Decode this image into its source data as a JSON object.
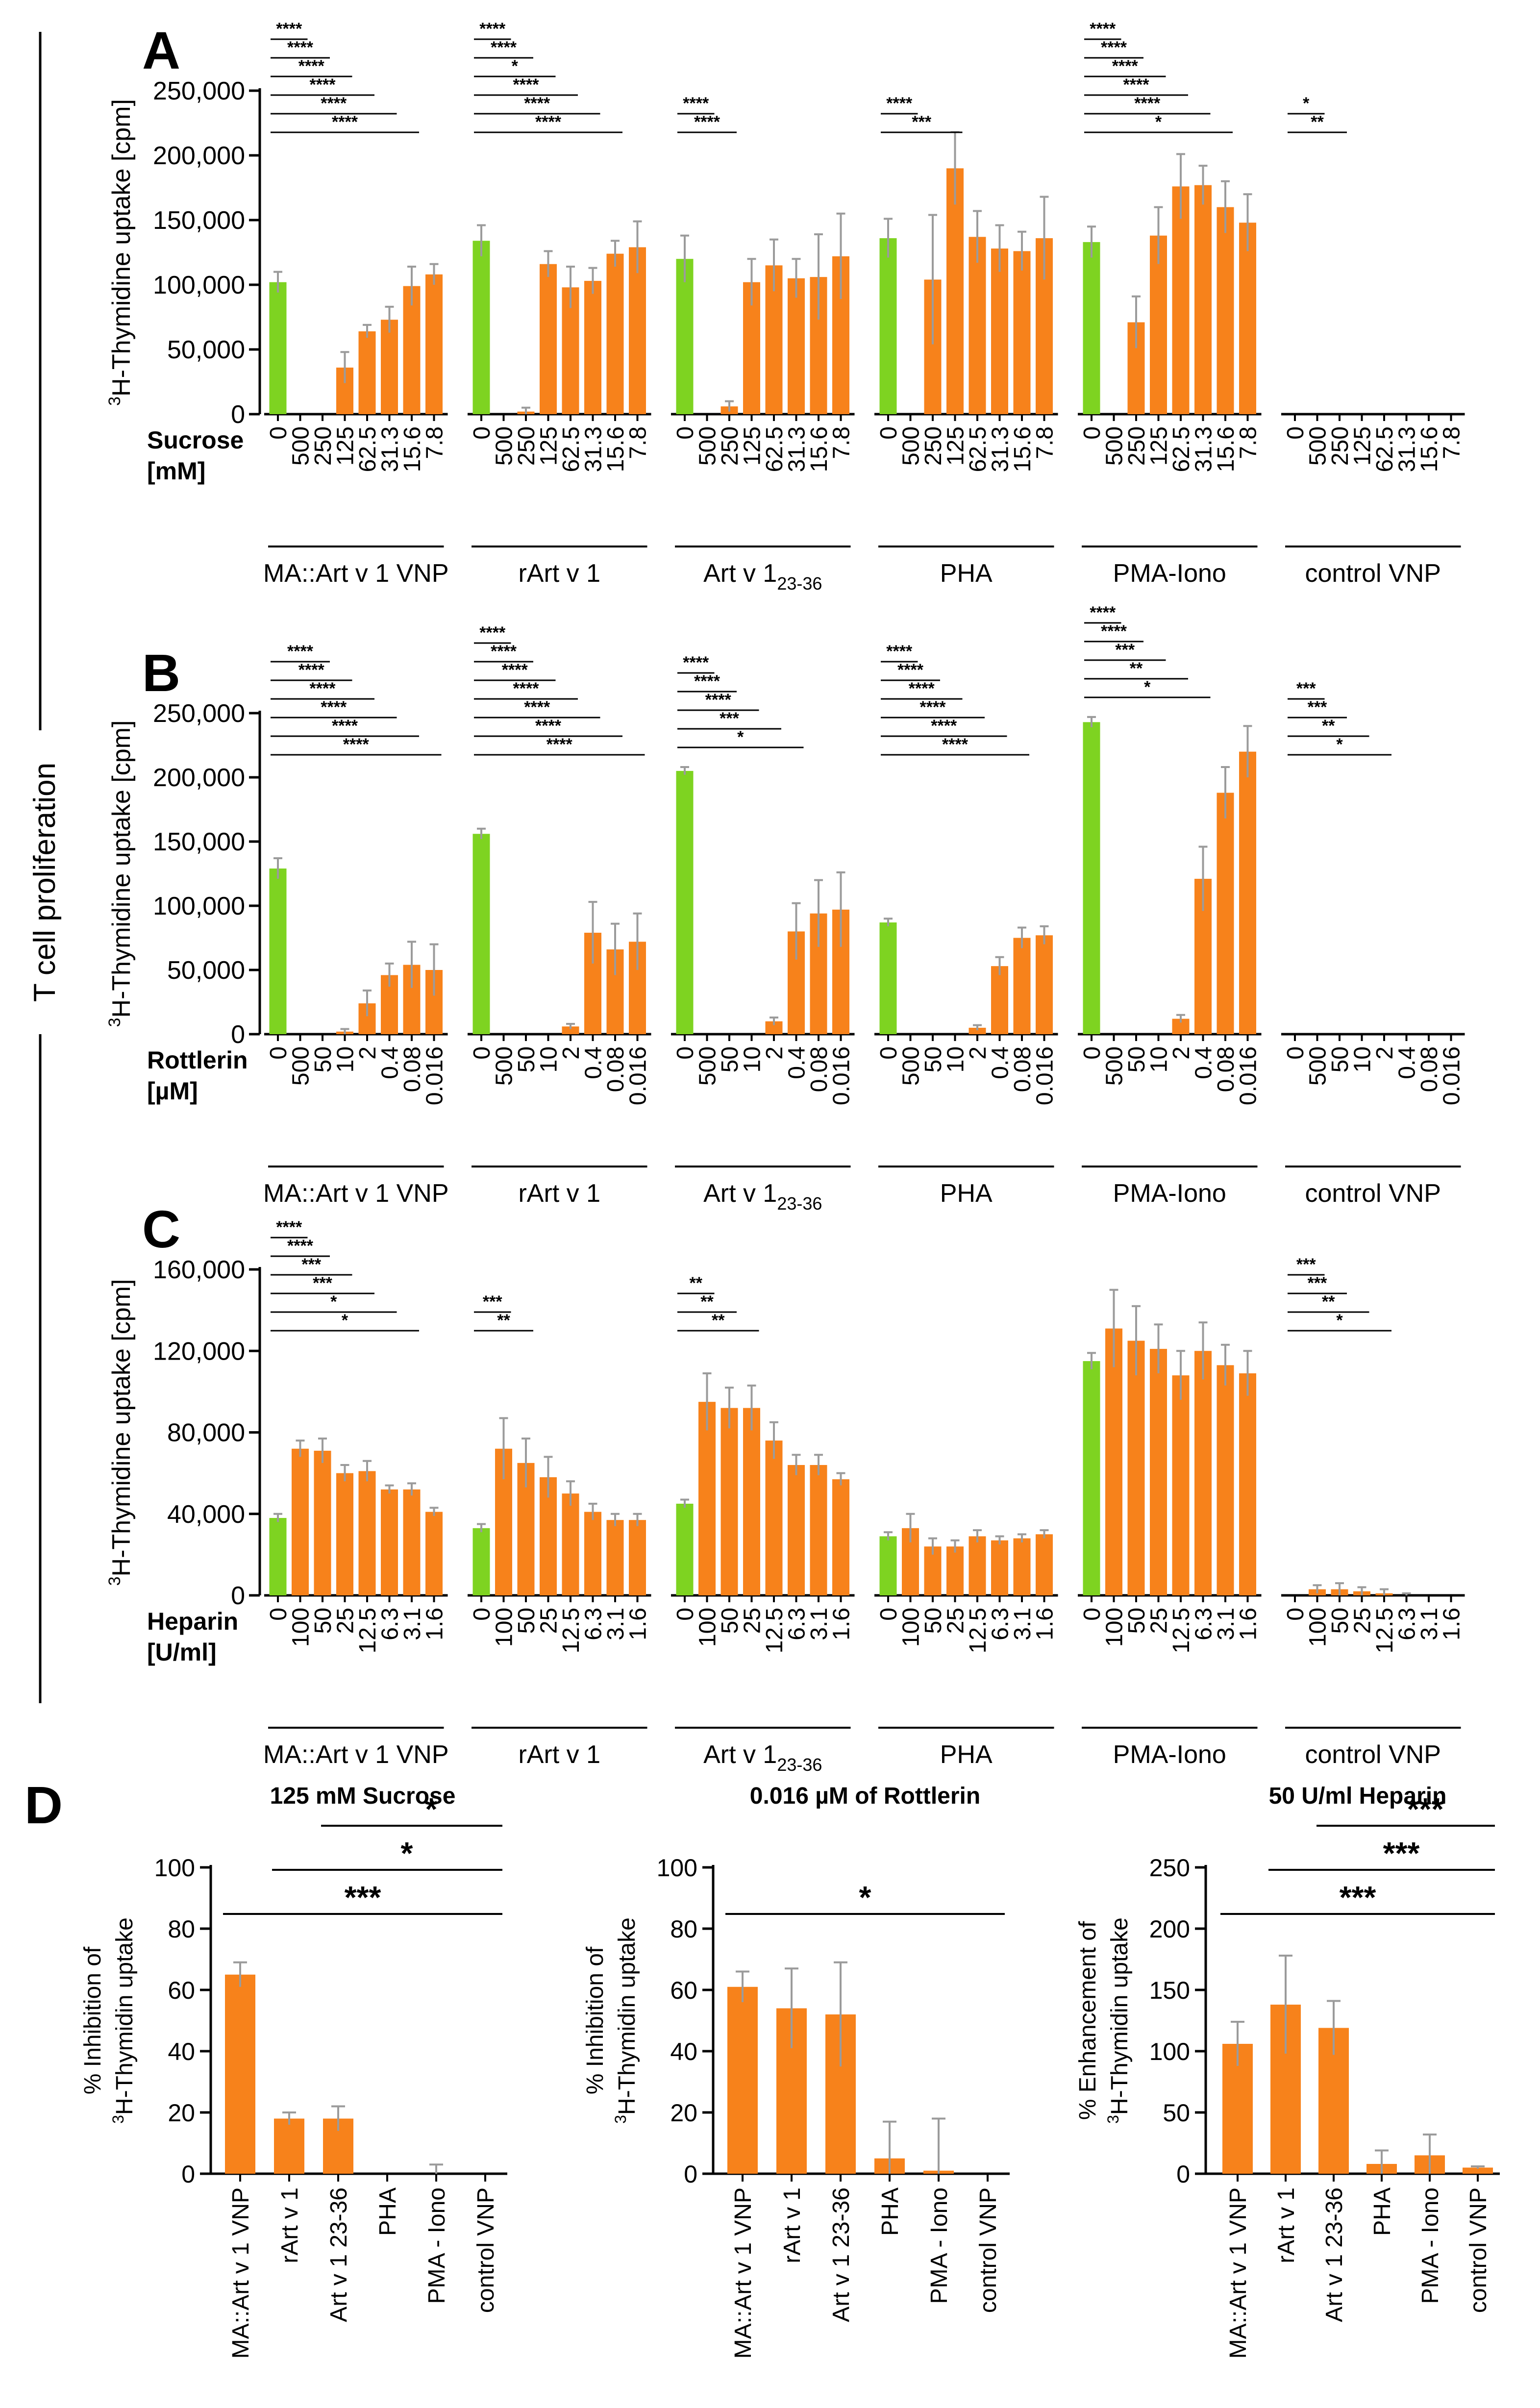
{
  "figure": {
    "side_label": "T cell proliferation",
    "colors": {
      "control": "#7ed321",
      "treated": "#f7821b",
      "error": "#9b9b9b",
      "axis": "#000000"
    }
  },
  "chart_data": [
    {
      "id": "A",
      "type": "bar",
      "panel_letter": "A",
      "ylabel": "3H-Thymidine uptake [cpm]",
      "ylabel_sup": "3",
      "ylabel_main": "H-Thymidine uptake [cpm]",
      "ylim": [
        0,
        250000
      ],
      "yticks": [
        0,
        50000,
        100000,
        150000,
        200000,
        250000
      ],
      "ytick_labels": [
        "0",
        "50,000",
        "100,000",
        "150,000",
        "200,000",
        "250,000"
      ],
      "treatment_label": [
        "Sucrose",
        "[mM]"
      ],
      "categories": [
        "0",
        "500",
        "250",
        "125",
        "62.5",
        "31.3",
        "15.6",
        "7.8"
      ],
      "groups": [
        {
          "name": "MA::Art v 1 VNP",
          "values": [
            102000,
            0,
            0,
            36000,
            64000,
            73000,
            99000,
            108000
          ],
          "errors": [
            8000,
            0,
            0,
            12000,
            5000,
            10000,
            15000,
            8000
          ],
          "significance": [
            {
              "to": 1,
              "label": "****"
            },
            {
              "to": 2,
              "label": "****"
            },
            {
              "to": 3,
              "label": "****"
            },
            {
              "to": 4,
              "label": "****"
            },
            {
              "to": 5,
              "label": "****"
            },
            {
              "to": 6,
              "label": "****"
            }
          ]
        },
        {
          "name": "rArt v 1",
          "values": [
            134000,
            0,
            2000,
            116000,
            98000,
            103000,
            124000,
            129000
          ],
          "errors": [
            12000,
            0,
            3000,
            10000,
            16000,
            10000,
            10000,
            20000
          ],
          "significance": [
            {
              "to": 1,
              "label": "****"
            },
            {
              "to": 2,
              "label": "****"
            },
            {
              "to": 3,
              "label": "*"
            },
            {
              "to": 4,
              "label": "****"
            },
            {
              "to": 5,
              "label": "****"
            },
            {
              "to": 6,
              "label": "****"
            }
          ]
        },
        {
          "name": "Art v 1",
          "name_sub": "23-36",
          "values": [
            120000,
            0,
            6000,
            102000,
            115000,
            105000,
            106000,
            122000
          ],
          "errors": [
            18000,
            0,
            4000,
            18000,
            20000,
            15000,
            33000,
            33000
          ],
          "significance": [
            {
              "to": 1,
              "label": "****"
            },
            {
              "to": 2,
              "label": "****"
            }
          ]
        },
        {
          "name": "PHA",
          "values": [
            136000,
            0,
            104000,
            190000,
            137000,
            128000,
            126000,
            136000
          ],
          "errors": [
            15000,
            0,
            50000,
            28000,
            20000,
            18000,
            15000,
            32000
          ],
          "significance": [
            {
              "to": 1,
              "label": "****"
            },
            {
              "to": 3,
              "label": "***"
            }
          ]
        },
        {
          "name": "PMA-Iono",
          "values": [
            133000,
            0,
            71000,
            138000,
            176000,
            177000,
            160000,
            148000
          ],
          "errors": [
            12000,
            0,
            20000,
            22000,
            25000,
            15000,
            20000,
            22000
          ],
          "significance": [
            {
              "to": 1,
              "label": "****"
            },
            {
              "to": 2,
              "label": "****"
            },
            {
              "to": 3,
              "label": "****"
            },
            {
              "to": 4,
              "label": "****"
            },
            {
              "to": 5,
              "label": "****"
            },
            {
              "to": 6,
              "label": "*"
            }
          ]
        },
        {
          "name": "control VNP",
          "values": [
            0,
            0,
            0,
            0,
            0,
            0,
            0,
            0
          ],
          "errors": [
            0,
            0,
            0,
            0,
            0,
            0,
            0,
            0
          ],
          "significance": [
            {
              "to": 1,
              "label": "*"
            },
            {
              "to": 2,
              "label": "**"
            }
          ]
        }
      ]
    },
    {
      "id": "B",
      "type": "bar",
      "panel_letter": "B",
      "ylabel": "3H-Thymidine uptake [cpm]",
      "ylabel_sup": "3",
      "ylabel_main": "H-Thymidine uptake [cpm]",
      "ylim": [
        0,
        250000
      ],
      "yticks": [
        0,
        50000,
        100000,
        150000,
        200000,
        250000
      ],
      "ytick_labels": [
        "0",
        "50,000",
        "100,000",
        "150,000",
        "200,000",
        "250,000"
      ],
      "treatment_label": [
        "Rottlerin",
        "[µM]"
      ],
      "categories": [
        "0",
        "500",
        "50",
        "10",
        "2",
        "0.4",
        "0.08",
        "0.016"
      ],
      "groups": [
        {
          "name": "MA::Art v 1 VNP",
          "values": [
            129000,
            0,
            0,
            2000,
            24000,
            46000,
            54000,
            50000
          ],
          "errors": [
            8000,
            0,
            0,
            2000,
            10000,
            9000,
            18000,
            20000
          ],
          "significance": [
            {
              "to": 2,
              "label": "****"
            },
            {
              "to": 3,
              "label": "****"
            },
            {
              "to": 4,
              "label": "****"
            },
            {
              "to": 5,
              "label": "****"
            },
            {
              "to": 6,
              "label": "****"
            },
            {
              "to": 7,
              "label": "****"
            }
          ]
        },
        {
          "name": "rArt v 1",
          "values": [
            156000,
            0,
            0,
            0,
            6000,
            79000,
            66000,
            72000
          ],
          "errors": [
            4000,
            0,
            0,
            0,
            2000,
            24000,
            20000,
            22000
          ],
          "significance": [
            {
              "to": 1,
              "label": "****"
            },
            {
              "to": 2,
              "label": "****"
            },
            {
              "to": 3,
              "label": "****"
            },
            {
              "to": 4,
              "label": "****"
            },
            {
              "to": 5,
              "label": "****"
            },
            {
              "to": 6,
              "label": "****"
            },
            {
              "to": 7,
              "label": "****"
            }
          ]
        },
        {
          "name": "Art v 1",
          "name_sub": "23-36",
          "values": [
            205000,
            0,
            0,
            0,
            10000,
            80000,
            94000,
            97000
          ],
          "errors": [
            3000,
            0,
            0,
            0,
            3000,
            22000,
            26000,
            29000
          ],
          "significance": [
            {
              "to": 1,
              "label": "****"
            },
            {
              "to": 2,
              "label": "****"
            },
            {
              "to": 3,
              "label": "****"
            },
            {
              "to": 4,
              "label": "***"
            },
            {
              "to": 5,
              "label": "*"
            }
          ]
        },
        {
          "name": "PHA",
          "values": [
            87000,
            0,
            0,
            0,
            5000,
            53000,
            75000,
            77000
          ],
          "errors": [
            3000,
            0,
            0,
            0,
            2000,
            7000,
            8000,
            7000
          ],
          "significance": [
            {
              "to": 1,
              "label": "****"
            },
            {
              "to": 2,
              "label": "****"
            },
            {
              "to": 3,
              "label": "****"
            },
            {
              "to": 4,
              "label": "****"
            },
            {
              "to": 5,
              "label": "****"
            },
            {
              "to": 6,
              "label": "****"
            }
          ]
        },
        {
          "name": "PMA-Iono",
          "values": [
            243000,
            0,
            0,
            0,
            12000,
            121000,
            188000,
            220000
          ],
          "errors": [
            4000,
            0,
            0,
            0,
            3000,
            25000,
            20000,
            20000
          ],
          "significance": [
            {
              "to": 1,
              "label": "****"
            },
            {
              "to": 2,
              "label": "****"
            },
            {
              "to": 3,
              "label": "***"
            },
            {
              "to": 4,
              "label": "**"
            },
            {
              "to": 5,
              "label": "*"
            }
          ]
        },
        {
          "name": "control VNP",
          "values": [
            0,
            0,
            0,
            0,
            0,
            0,
            0,
            0
          ],
          "errors": [
            0,
            0,
            0,
            0,
            0,
            0,
            0,
            0
          ],
          "significance": [
            {
              "to": 1,
              "label": "***"
            },
            {
              "to": 2,
              "label": "***"
            },
            {
              "to": 3,
              "label": "**"
            },
            {
              "to": 4,
              "label": "*"
            }
          ]
        }
      ]
    },
    {
      "id": "C",
      "type": "bar",
      "panel_letter": "C",
      "ylabel": "3H-Thymidine uptake [cpm]",
      "ylabel_sup": "3",
      "ylabel_main": "H-Thymidine uptake [cpm]",
      "ylim": [
        0,
        160000
      ],
      "yticks": [
        0,
        40000,
        80000,
        120000,
        160000
      ],
      "ytick_labels": [
        "0",
        "40,000",
        "80,000",
        "120,000",
        "160,000"
      ],
      "treatment_label": [
        "Heparin",
        "[U/ml]"
      ],
      "categories": [
        "0",
        "100",
        "50",
        "25",
        "12.5",
        "6.3",
        "3.1",
        "1.6"
      ],
      "groups": [
        {
          "name": "MA::Art v 1 VNP",
          "values": [
            38000,
            72000,
            71000,
            60000,
            61000,
            52000,
            52000,
            41000
          ],
          "errors": [
            2000,
            4000,
            6000,
            4000,
            5000,
            2000,
            3000,
            2000
          ],
          "significance": [
            {
              "to": 1,
              "label": "****"
            },
            {
              "to": 2,
              "label": "****"
            },
            {
              "to": 3,
              "label": "***"
            },
            {
              "to": 4,
              "label": "***"
            },
            {
              "to": 5,
              "label": "*"
            },
            {
              "to": 6,
              "label": "*"
            }
          ]
        },
        {
          "name": "rArt v 1",
          "values": [
            33000,
            72000,
            65000,
            58000,
            50000,
            41000,
            37000,
            37000
          ],
          "errors": [
            2000,
            15000,
            12000,
            10000,
            6000,
            4000,
            3000,
            3000
          ],
          "significance": [
            {
              "to": 1,
              "label": "***"
            },
            {
              "to": 2,
              "label": "**"
            }
          ]
        },
        {
          "name": "Art v 1",
          "name_sub": "23-36",
          "values": [
            45000,
            95000,
            92000,
            92000,
            76000,
            64000,
            64000,
            57000
          ],
          "errors": [
            2000,
            14000,
            10000,
            11000,
            9000,
            5000,
            5000,
            3000
          ],
          "significance": [
            {
              "to": 1,
              "label": "**"
            },
            {
              "to": 2,
              "label": "**"
            },
            {
              "to": 3,
              "label": "**"
            }
          ]
        },
        {
          "name": "PHA",
          "values": [
            29000,
            33000,
            24000,
            24000,
            29000,
            27000,
            28000,
            30000
          ],
          "errors": [
            2000,
            7000,
            4000,
            3000,
            3000,
            2000,
            2000,
            2000
          ],
          "significance": []
        },
        {
          "name": "PMA-Iono",
          "values": [
            115000,
            131000,
            125000,
            121000,
            108000,
            120000,
            113000,
            109000
          ],
          "errors": [
            4000,
            19000,
            17000,
            12000,
            12000,
            14000,
            10000,
            11000
          ],
          "significance": []
        },
        {
          "name": "control VNP",
          "values": [
            0,
            3000,
            3000,
            2000,
            1000,
            0,
            0,
            0
          ],
          "errors": [
            0,
            2000,
            3000,
            2000,
            2000,
            1000,
            0,
            0
          ],
          "significance": [
            {
              "to": 1,
              "label": "***"
            },
            {
              "to": 2,
              "label": "***"
            },
            {
              "to": 3,
              "label": "**"
            },
            {
              "to": 4,
              "label": "*"
            }
          ]
        }
      ]
    },
    {
      "id": "D1",
      "type": "bar",
      "panel_letter": "D",
      "title": "125 mM Sucrose",
      "ylabel_lines": [
        "% Inhibition of",
        "3H-Thymidin uptake"
      ],
      "ylabel_line2_sup": "3",
      "ylabel_line2_main": "H-Thymidin uptake",
      "ylim": [
        0,
        100
      ],
      "yticks": [
        0,
        20,
        40,
        60,
        80,
        100
      ],
      "ytick_labels": [
        "0",
        "20",
        "40",
        "60",
        "80",
        "100"
      ],
      "categories": [
        "MA::Art v 1 VNP",
        "rArt v 1",
        "Art v 1 23-36",
        "PHA",
        "PMA - Iono",
        "control VNP"
      ],
      "values": [
        65,
        18,
        18,
        0,
        0,
        0
      ],
      "errors": [
        4,
        2,
        4,
        0,
        3,
        0
      ],
      "significance": [
        {
          "from": 0,
          "to": 5,
          "label": "***"
        },
        {
          "from": 1,
          "to": 5,
          "label": "*"
        },
        {
          "from": 2,
          "to": 5,
          "label": "*"
        }
      ]
    },
    {
      "id": "D2",
      "type": "bar",
      "title": "0.016 µM of Rottlerin",
      "ylabel_lines": [
        "% Inhibition of",
        "3H-Thymidin uptake"
      ],
      "ylabel_line2_sup": "3",
      "ylabel_line2_main": "H-Thymidin uptake",
      "ylim": [
        0,
        100
      ],
      "yticks": [
        0,
        20,
        40,
        60,
        80,
        100
      ],
      "ytick_labels": [
        "0",
        "20",
        "40",
        "60",
        "80",
        "100"
      ],
      "categories": [
        "MA::Art v 1 VNP",
        "rArt v 1",
        "Art v 1 23-36",
        "PHA",
        "PMA - Iono",
        "control VNP"
      ],
      "values": [
        61,
        54,
        52,
        5,
        1,
        0
      ],
      "errors": [
        5,
        13,
        17,
        12,
        17,
        0
      ],
      "significance": [
        {
          "from": 0,
          "to": 5,
          "label": "*"
        }
      ]
    },
    {
      "id": "D3",
      "type": "bar",
      "title": "50 U/ml Heparin",
      "ylabel_lines": [
        "% Enhancement of",
        "3H-Thymidin uptake"
      ],
      "ylabel_line2_sup": "3",
      "ylabel_line2_main": "H-Thymidin uptake",
      "ylim": [
        0,
        250
      ],
      "yticks": [
        0,
        50,
        100,
        150,
        200,
        250
      ],
      "ytick_labels": [
        "0",
        "50",
        "100",
        "150",
        "200",
        "250"
      ],
      "categories": [
        "MA::Art v 1 VNP",
        "rArt v 1",
        "Art v 1 23-36",
        "PHA",
        "PMA - Iono",
        "control VNP"
      ],
      "values": [
        106,
        138,
        119,
        8,
        15,
        5
      ],
      "errors": [
        18,
        40,
        22,
        11,
        17,
        1
      ],
      "significance": [
        {
          "from": 0,
          "to": 5,
          "label": "***"
        },
        {
          "from": 1,
          "to": 5,
          "label": "***"
        },
        {
          "from": 2,
          "to": 5,
          "label": "***"
        }
      ]
    }
  ]
}
